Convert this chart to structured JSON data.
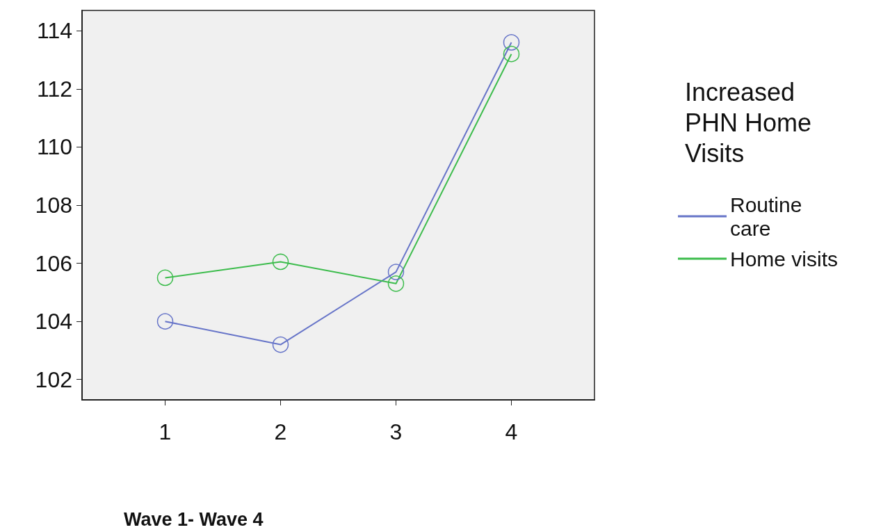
{
  "chart_data": {
    "type": "line",
    "xlabel": "Wave 1- Wave 4",
    "legend_title": "Increased PHN Home Visits",
    "x": [
      1,
      2,
      3,
      4
    ],
    "xlim": [
      0.28,
      4.72
    ],
    "xticks": [
      1,
      2,
      3,
      4
    ],
    "ylim": [
      101.3,
      114.7
    ],
    "yticks": [
      102,
      104,
      106,
      108,
      110,
      112,
      114
    ],
    "series": [
      {
        "name": "Routine care",
        "color": "#6674c8",
        "values": [
          104.0,
          103.2,
          105.7,
          113.6
        ]
      },
      {
        "name": "Home visits",
        "color": "#3cbc4c",
        "values": [
          105.5,
          106.05,
          105.3,
          113.2
        ]
      }
    ],
    "marker": "circle",
    "line_style": "solid",
    "grid": false,
    "legend": "right"
  }
}
